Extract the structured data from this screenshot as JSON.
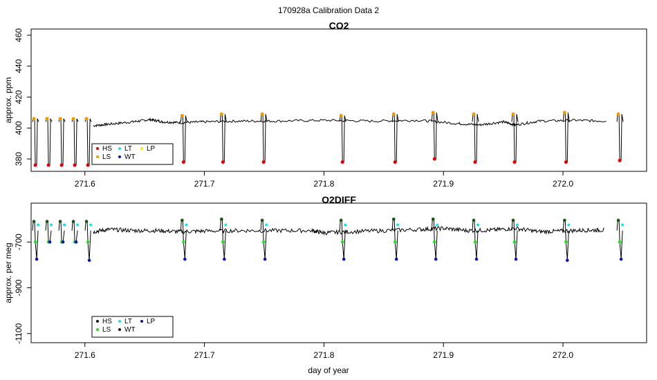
{
  "figure": {
    "title": "170928a   Calibration Data 2",
    "xlabel": "day of year"
  },
  "colors": {
    "HS": "#dd0000",
    "LS": "#22dd22",
    "LT": "#22dddd",
    "WT": "#1010aa",
    "LP": "#eeee00",
    "HS_top": "#ee9900",
    "purple": "#8833cc",
    "line": "#000000"
  },
  "chart_data": [
    {
      "type": "line",
      "title": "CO2",
      "ylabel": "approx. ppm",
      "xlim": [
        271.555,
        272.07
      ],
      "ylim": [
        372,
        464
      ],
      "xticks": [
        271.6,
        271.7,
        271.8,
        271.9,
        272.0
      ],
      "xtick_labels": [
        "271.6",
        "271.7",
        "271.8",
        "271.9",
        "272.0"
      ],
      "yticks": [
        380,
        400,
        420,
        440,
        460
      ],
      "ytick_labels": [
        "380",
        "400",
        "420",
        "440",
        "460"
      ],
      "legend": {
        "position": "bottom-left",
        "entries": [
          {
            "label": "HS",
            "color": "#dd0000"
          },
          {
            "label": "LS",
            "color": "#ee9900"
          },
          {
            "label": "LT",
            "color": "#22dddd"
          },
          {
            "label": "WT",
            "color": "#1010aa"
          },
          {
            "label": "LP",
            "color": "#eeee00"
          }
        ]
      },
      "baseline": [
        [
          271.607,
          401.5
        ],
        [
          271.62,
          402.5
        ],
        [
          271.64,
          404
        ],
        [
          271.655,
          405.5
        ],
        [
          271.665,
          404
        ],
        [
          271.68,
          403.5
        ],
        [
          271.7,
          404
        ],
        [
          271.73,
          404.5
        ],
        [
          271.76,
          404.5
        ],
        [
          271.8,
          405
        ],
        [
          271.84,
          404.5
        ],
        [
          271.88,
          405
        ],
        [
          271.91,
          403
        ],
        [
          271.93,
          402
        ],
        [
          271.95,
          404
        ],
        [
          271.96,
          402
        ],
        [
          271.98,
          404.5
        ],
        [
          272.01,
          405
        ],
        [
          272.037,
          404.5
        ]
      ],
      "cycles": [
        {
          "x": 271.5585,
          "hs": 376,
          "ls": 406
        },
        {
          "x": 271.5695,
          "hs": 376,
          "ls": 406
        },
        {
          "x": 271.5805,
          "hs": 376,
          "ls": 406
        },
        {
          "x": 271.5915,
          "hs": 376,
          "ls": 406
        },
        {
          "x": 271.6025,
          "hs": 376,
          "ls": 406
        },
        {
          "x": 271.6825,
          "hs": 378,
          "ls": 408
        },
        {
          "x": 271.7155,
          "hs": 378,
          "ls": 409
        },
        {
          "x": 271.7495,
          "hs": 378,
          "ls": 409
        },
        {
          "x": 271.8155,
          "hs": 378,
          "ls": 408
        },
        {
          "x": 271.8595,
          "hs": 378,
          "ls": 409
        },
        {
          "x": 271.8925,
          "hs": 380,
          "ls": 410
        },
        {
          "x": 271.9265,
          "hs": 378,
          "ls": 409
        },
        {
          "x": 271.9595,
          "hs": 378,
          "ls": 409
        },
        {
          "x": 272.0025,
          "hs": 378,
          "ls": 410
        },
        {
          "x": 272.0475,
          "hs": 379,
          "ls": 409
        }
      ]
    },
    {
      "type": "line",
      "title": "O2DIFF",
      "ylabel": "approx. per meg",
      "xlim": [
        271.555,
        272.07
      ],
      "ylim": [
        -1140,
        -530
      ],
      "xticks": [
        271.6,
        271.7,
        271.8,
        271.9,
        272.0
      ],
      "xtick_labels": [
        "271.6",
        "271.7",
        "271.8",
        "271.9",
        "272.0"
      ],
      "yticks": [
        -700,
        -900,
        -1100
      ],
      "ytick_labels": [
        "-700",
        "-900",
        "-1100"
      ],
      "legend": {
        "position": "bottom-left",
        "entries": [
          {
            "label": "HS",
            "color": "#111111"
          },
          {
            "label": "LS",
            "color": "#22dd22"
          },
          {
            "label": "LT",
            "color": "#22dddd"
          },
          {
            "label": "WT",
            "color": "#111111"
          },
          {
            "label": "LP",
            "color": "#1010aa"
          }
        ]
      },
      "baseline": [
        [
          271.607,
          -655
        ],
        [
          271.62,
          -645
        ],
        [
          271.64,
          -650
        ],
        [
          271.66,
          -650
        ],
        [
          271.68,
          -655
        ],
        [
          271.7,
          -652
        ],
        [
          271.73,
          -650
        ],
        [
          271.76,
          -650
        ],
        [
          271.79,
          -650
        ],
        [
          271.8,
          -660
        ],
        [
          271.82,
          -655
        ],
        [
          271.85,
          -650
        ],
        [
          271.88,
          -645
        ],
        [
          271.9,
          -640
        ],
        [
          271.92,
          -650
        ],
        [
          271.94,
          -648
        ],
        [
          271.96,
          -640
        ],
        [
          271.98,
          -655
        ],
        [
          272.0,
          -652
        ],
        [
          272.02,
          -648
        ],
        [
          272.035,
          -648
        ]
      ],
      "cycles": [
        {
          "x": 271.5585,
          "hs": -610,
          "ls": -700,
          "wt": -775
        },
        {
          "x": 271.5695,
          "hs": -610,
          "ls": -700,
          "wt": -700
        },
        {
          "x": 271.5805,
          "hs": -610,
          "ls": -700,
          "wt": -700
        },
        {
          "x": 271.5915,
          "hs": -610,
          "ls": -700,
          "wt": -700
        },
        {
          "x": 271.6025,
          "hs": -610,
          "ls": -700,
          "wt": -780
        },
        {
          "x": 271.6825,
          "hs": -605,
          "ls": -700,
          "wt": -775
        },
        {
          "x": 271.7155,
          "hs": -600,
          "ls": -700,
          "wt": -775
        },
        {
          "x": 271.7495,
          "hs": -605,
          "ls": -700,
          "wt": -775
        },
        {
          "x": 271.8155,
          "hs": -605,
          "ls": -700,
          "wt": -775
        },
        {
          "x": 271.8595,
          "hs": -600,
          "ls": -700,
          "wt": -775
        },
        {
          "x": 271.8925,
          "hs": -600,
          "ls": -700,
          "wt": -775
        },
        {
          "x": 271.9265,
          "hs": -605,
          "ls": -700,
          "wt": -775
        },
        {
          "x": 271.9595,
          "hs": -605,
          "ls": -700,
          "wt": -775
        },
        {
          "x": 272.0025,
          "hs": -605,
          "ls": -700,
          "wt": -780
        },
        {
          "x": 272.0475,
          "hs": -605,
          "ls": -700,
          "wt": -775
        }
      ]
    }
  ]
}
